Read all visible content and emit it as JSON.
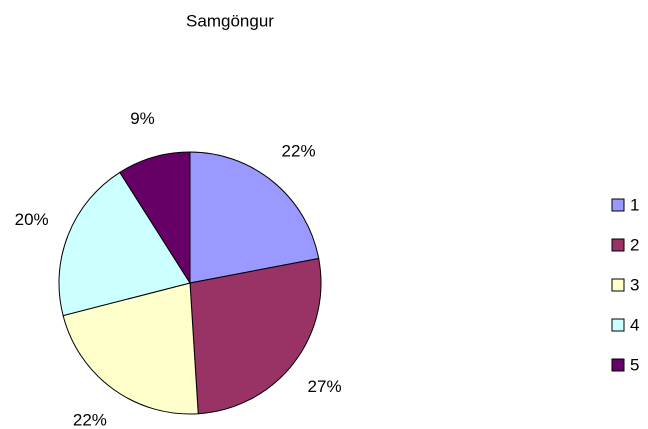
{
  "chart_data": {
    "type": "pie",
    "title": "Samgöngur",
    "categories": [
      "1",
      "2",
      "3",
      "4",
      "5"
    ],
    "values": [
      22,
      27,
      22,
      20,
      9
    ],
    "value_labels": [
      "22%",
      "27%",
      "22%",
      "20%",
      "9%"
    ],
    "colors": [
      "#9999ff",
      "#993366",
      "#ffffcc",
      "#ccffff",
      "#660066"
    ],
    "legend": "right"
  }
}
